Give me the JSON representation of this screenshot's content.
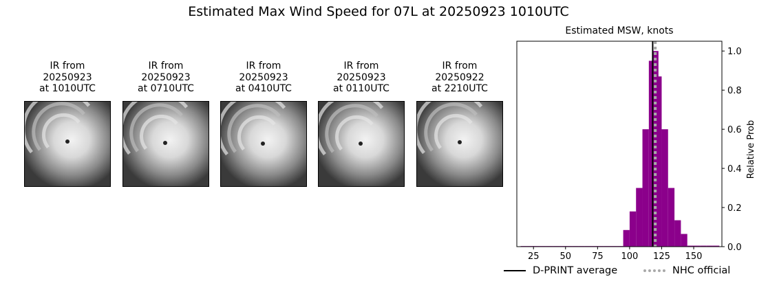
{
  "title": "Estimated Max Wind Speed for 07L at 20250923 1010UTC",
  "ir_panels": [
    {
      "caption": "IR from\n20250923\nat 1010UTC"
    },
    {
      "caption": "IR from\n20250923\nat 0710UTC"
    },
    {
      "caption": "IR from\n20250923\nat 0410UTC"
    },
    {
      "caption": "IR from\n20250923\nat 0110UTC"
    },
    {
      "caption": "IR from\n20250922\nat 2210UTC"
    }
  ],
  "chart_data": {
    "type": "bar",
    "title": "Estimated MSW, knots",
    "xlabel": "",
    "ylabel": "Relative Prob",
    "xlim": [
      12,
      172
    ],
    "ylim": [
      0,
      1.05
    ],
    "xticks": [
      25,
      50,
      75,
      100,
      125,
      150
    ],
    "yticks": [
      0.0,
      0.2,
      0.4,
      0.6,
      0.8,
      1.0
    ],
    "ytick_labels": [
      "0.0",
      "0.2",
      "0.4",
      "0.6",
      "0.8",
      "1.0"
    ],
    "y_axis_side": "right",
    "bar_color": "#8b008b",
    "bin_width": 5,
    "bins": [
      {
        "x": 15,
        "value": 0.003
      },
      {
        "x": 20,
        "value": 0.003
      },
      {
        "x": 25,
        "value": 0.003
      },
      {
        "x": 30,
        "value": 0.003
      },
      {
        "x": 35,
        "value": 0.003
      },
      {
        "x": 40,
        "value": 0.003
      },
      {
        "x": 45,
        "value": 0.003
      },
      {
        "x": 50,
        "value": 0.003
      },
      {
        "x": 55,
        "value": 0.003
      },
      {
        "x": 60,
        "value": 0.003
      },
      {
        "x": 65,
        "value": 0.003
      },
      {
        "x": 70,
        "value": 0.003
      },
      {
        "x": 75,
        "value": 0.003
      },
      {
        "x": 80,
        "value": 0.003
      },
      {
        "x": 85,
        "value": 0.003
      },
      {
        "x": 90,
        "value": 0.003
      },
      {
        "x": 95,
        "value": 0.085
      },
      {
        "x": 100,
        "value": 0.18
      },
      {
        "x": 105,
        "value": 0.3
      },
      {
        "x": 110,
        "value": 0.6
      },
      {
        "x": 115,
        "value": 0.95
      },
      {
        "x": 117.5,
        "value": 1.0
      },
      {
        "x": 120,
        "value": 0.87
      },
      {
        "x": 125,
        "value": 0.6
      },
      {
        "x": 130,
        "value": 0.3
      },
      {
        "x": 135,
        "value": 0.135
      },
      {
        "x": 140,
        "value": 0.065
      },
      {
        "x": 145,
        "value": 0.005
      },
      {
        "x": 150,
        "value": 0.005
      },
      {
        "x": 155,
        "value": 0.005
      },
      {
        "x": 160,
        "value": 0.005
      },
      {
        "x": 165,
        "value": 0.005
      }
    ],
    "series": [
      {
        "name": "D-PRINT average",
        "type": "vline",
        "x": 118,
        "color": "#000000",
        "style": "solid"
      },
      {
        "name": "NHC official",
        "type": "vline",
        "x": 120,
        "color": "#a9a9a9",
        "style": "dotted"
      }
    ],
    "legend_position": "bottom"
  }
}
